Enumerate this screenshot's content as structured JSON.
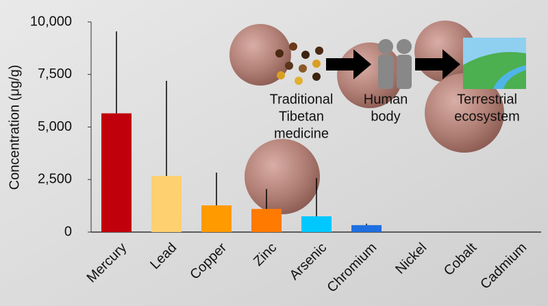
{
  "chart_data": {
    "type": "bar",
    "y_label": "Concentration (μg/g)",
    "categories": [
      "Mercury",
      "Lead",
      "Copper",
      "Zinc",
      "Arsenic",
      "Chromium",
      "Nickel",
      "Cobalt",
      "Cadmium"
    ],
    "values": [
      5650,
      2670,
      1270,
      1100,
      750,
      330,
      0,
      0,
      0
    ],
    "errors": [
      3900,
      4530,
      1560,
      950,
      1820,
      70,
      0,
      0,
      0
    ],
    "colors": [
      "#c0000b",
      "#ffd070",
      "#ff9a00",
      "#ff7a00",
      "#00c8ff",
      "#1f6fe0",
      "#888888",
      "#888888",
      "#888888"
    ],
    "ylim": [
      0,
      10000
    ],
    "yticks": [
      0,
      {
        "value": 2500,
        "label": "2,500"
      },
      {
        "value": 5000,
        "label": "5,000"
      },
      {
        "value": 7500,
        "label": "7,500"
      },
      {
        "value": 10000,
        "label": "10,000"
      }
    ],
    "annotations": [
      [
        "Traditional",
        "Tibetan",
        "medicine"
      ],
      [
        "Human",
        "body"
      ],
      [
        "Terrestrial",
        "ecosystem"
      ]
    ]
  }
}
